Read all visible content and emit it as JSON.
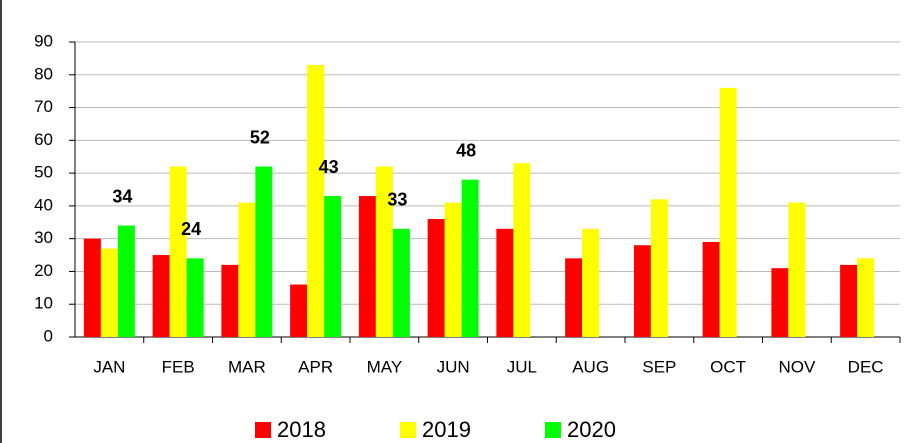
{
  "chart_data": {
    "type": "bar",
    "categories": [
      "JAN",
      "FEB",
      "MAR",
      "APR",
      "MAY",
      "JUN",
      "JUL",
      "AUG",
      "SEP",
      "OCT",
      "NOV",
      "DEC"
    ],
    "series": [
      {
        "name": "2018",
        "color": "#ff0000",
        "values": [
          30,
          25,
          22,
          16,
          43,
          36,
          33,
          24,
          28,
          29,
          21,
          22
        ]
      },
      {
        "name": "2019",
        "color": "#ffff00",
        "values": [
          27,
          52,
          41,
          83,
          52,
          41,
          53,
          33,
          42,
          76,
          41,
          24
        ]
      },
      {
        "name": "2020",
        "color": "#00ff00",
        "values": [
          34,
          24,
          52,
          43,
          33,
          48,
          null,
          null,
          null,
          null,
          null,
          null
        ],
        "data_labels": true
      }
    ],
    "ylim": [
      0,
      90
    ],
    "yticks": [
      0,
      10,
      20,
      30,
      40,
      50,
      60,
      70,
      80,
      90
    ],
    "grid": true,
    "legend": "bottom"
  }
}
